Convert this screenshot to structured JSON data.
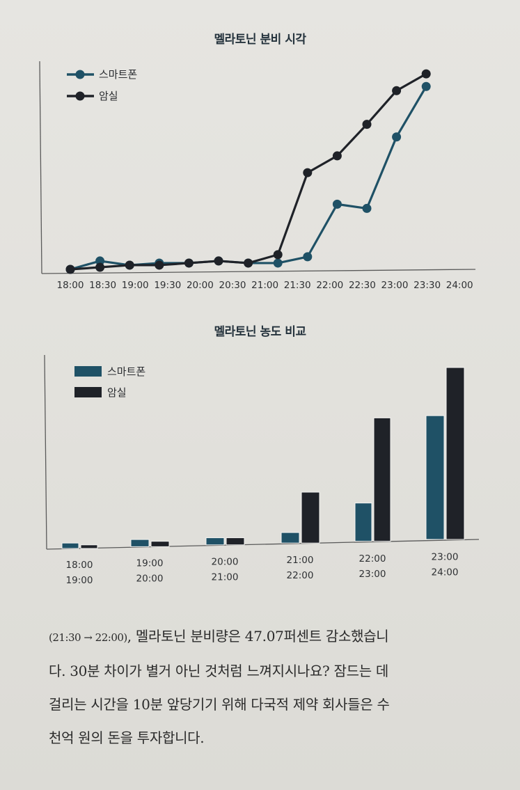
{
  "colors": {
    "smartphone": "#1f5166",
    "dark_room": "#1f2228",
    "axis": "#5a5a5a"
  },
  "chart_data": [
    {
      "type": "line",
      "title": "멜라토닌 분비 시각",
      "xlabel": "",
      "ylabel": "",
      "x": [
        "18:00",
        "18:30",
        "19:00",
        "19:30",
        "20:00",
        "20:30",
        "21:00",
        "21:30",
        "22:00",
        "22:30",
        "23:00",
        "23:30",
        "24:00"
      ],
      "series": [
        {
          "name": "스마트폰",
          "values": [
            0,
            4,
            2,
            3,
            3,
            4,
            3,
            3,
            6,
            31,
            29,
            63,
            87
          ]
        },
        {
          "name": "암실",
          "values": [
            0,
            1,
            2,
            2,
            3,
            4,
            3,
            7,
            46,
            54,
            69,
            85,
            93
          ]
        }
      ],
      "ylim": [
        0,
        100
      ],
      "grid": false,
      "legend_position": "top-left",
      "y_axis_ticks": false
    },
    {
      "type": "bar",
      "title": "멜라토닌 농도 비교",
      "xlabel": "",
      "ylabel": "",
      "categories": [
        "18:00\n19:00",
        "19:00\n20:00",
        "20:00\n21:00",
        "21:00\n22:00",
        "22:00\n23:00",
        "23:00\n24:00"
      ],
      "category_lines": [
        [
          "18:00",
          "19:00"
        ],
        [
          "19:00",
          "20:00"
        ],
        [
          "20:00",
          "21:00"
        ],
        [
          "21:00",
          "22:00"
        ],
        [
          "22:00",
          "23:00"
        ],
        [
          "23:00",
          "24:00"
        ]
      ],
      "series": [
        {
          "name": "스마트폰",
          "values": [
            3,
            4,
            4,
            6,
            22,
            72
          ]
        },
        {
          "name": "암실",
          "values": [
            2,
            3,
            4,
            29,
            71,
            100
          ]
        }
      ],
      "ylim": [
        0,
        105
      ],
      "grid": false,
      "legend_position": "top-left"
    }
  ],
  "legend": {
    "smartphone": "스마트폰",
    "dark_room": "암실"
  },
  "paragraph": {
    "line1_prefix": "(21:30 → 22:00)",
    "line1_rest": ", 멜라토닌 분비량은 47.07퍼센트 감소했습니",
    "line2": "다. 30분 차이가 별거 아닌 것처럼 느껴지시나요? 잠드는 데",
    "line3": "걸리는 시간을 10분 앞당기기 위해 다국적 제약 회사들은 수",
    "line4": "천억 원의 돈을 투자합니다."
  }
}
